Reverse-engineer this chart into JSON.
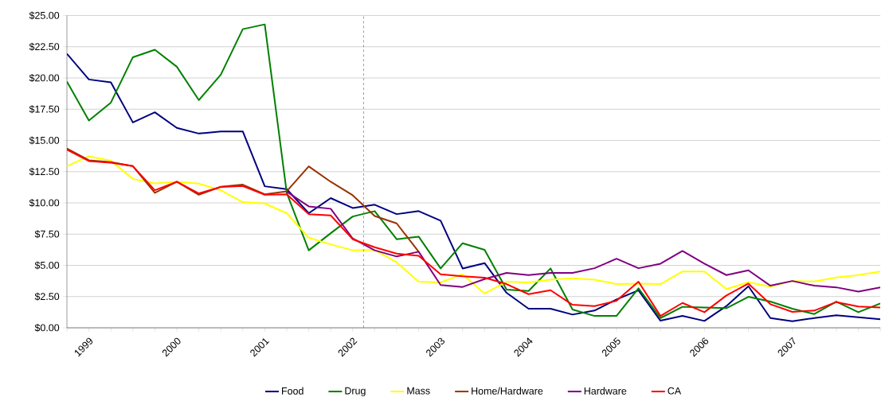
{
  "chart_data": {
    "type": "line",
    "x": [
      1998.75,
      1999.0,
      1999.25,
      1999.5,
      1999.75,
      2000.0,
      2000.25,
      2000.5,
      2000.75,
      2001.0,
      2001.25,
      2001.5,
      2001.75,
      2002.0,
      2002.25,
      2002.5,
      2002.75,
      2003.0,
      2003.25,
      2003.5,
      2003.75,
      2004.0,
      2004.25,
      2004.5,
      2004.75,
      2005.0,
      2005.25,
      2005.5,
      2005.75,
      2006.0,
      2006.25,
      2006.5,
      2006.75,
      2007.0,
      2007.25,
      2007.5,
      2007.75,
      2008.0
    ],
    "series": [
      {
        "name": "Food",
        "color": "#000080",
        "values": [
          21.94,
          19.88,
          19.65,
          16.44,
          17.25,
          16.0,
          15.55,
          15.72,
          15.72,
          11.33,
          11.1,
          9.17,
          10.38,
          9.59,
          9.85,
          9.1,
          9.34,
          8.57,
          4.75,
          5.18,
          2.8,
          1.53,
          1.53,
          1.06,
          1.38,
          2.27,
          3.0,
          0.57,
          0.95,
          0.55,
          1.74,
          3.33,
          0.78,
          0.53,
          0.78,
          1.01,
          0.85,
          0.68
        ]
      },
      {
        "name": "Drug",
        "color": "#008000",
        "values": [
          19.71,
          16.59,
          18.03,
          21.66,
          22.26,
          20.9,
          18.23,
          20.26,
          23.91,
          24.29,
          10.8,
          6.2,
          7.57,
          8.91,
          9.34,
          7.09,
          7.3,
          4.75,
          6.77,
          6.24,
          3.06,
          2.95,
          4.75,
          1.46,
          0.95,
          0.95,
          3.16,
          0.78,
          1.68,
          1.63,
          1.57,
          2.48,
          2.1,
          1.53,
          1.1,
          2.1,
          1.25,
          1.95
        ]
      },
      {
        "name": "Mass",
        "color": "#ffff00",
        "values": [
          12.94,
          13.73,
          13.37,
          11.92,
          11.56,
          11.69,
          11.54,
          11.01,
          10.06,
          9.95,
          9.17,
          7.21,
          6.68,
          6.2,
          6.24,
          5.24,
          3.69,
          3.63,
          4.29,
          2.74,
          3.69,
          3.63,
          3.86,
          3.96,
          3.86,
          3.5,
          3.54,
          3.5,
          4.51,
          4.51,
          3.11,
          3.65,
          3.29,
          3.75,
          3.71,
          4.03,
          4.22,
          4.5
        ]
      },
      {
        "name": "Home/Hardware",
        "color": "#993300",
        "values": [
          14.36,
          13.41,
          13.26,
          12.94,
          10.8,
          11.69,
          10.65,
          11.29,
          11.46,
          10.69,
          10.93,
          12.92,
          11.69,
          10.61,
          8.95,
          8.36,
          6.09,
          null,
          null,
          null,
          null,
          null,
          null,
          null,
          null,
          null,
          null,
          null,
          null,
          null,
          null,
          null,
          null,
          null,
          null,
          null,
          null,
          null
        ]
      },
      {
        "name": "Hardware",
        "color": "#800080",
        "values": [
          null,
          null,
          null,
          null,
          null,
          null,
          null,
          null,
          null,
          null,
          10.9,
          9.72,
          9.53,
          7.15,
          6.2,
          5.71,
          6.09,
          3.42,
          3.27,
          3.9,
          4.39,
          4.22,
          4.39,
          4.39,
          4.77,
          5.53,
          4.77,
          5.13,
          6.15,
          5.13,
          4.22,
          4.6,
          3.37,
          3.75,
          3.37,
          3.24,
          2.9,
          3.24
        ]
      },
      {
        "name": "CA",
        "color": "#ff0000",
        "values": [
          14.26,
          13.35,
          13.22,
          12.94,
          11.01,
          11.69,
          10.76,
          11.27,
          11.35,
          10.65,
          10.69,
          9.1,
          9.0,
          7.09,
          6.45,
          5.94,
          5.77,
          4.29,
          4.12,
          4.01,
          3.5,
          2.69,
          3.01,
          1.84,
          1.74,
          2.16,
          3.69,
          0.95,
          1.99,
          1.25,
          2.59,
          3.54,
          1.89,
          1.27,
          1.38,
          2.06,
          1.7,
          1.63
        ]
      }
    ],
    "xlim": [
      1998.75,
      2008.0
    ],
    "xticks": [
      {
        "value": 1998.75,
        "label": null
      },
      {
        "value": 1999,
        "label": "1999"
      },
      {
        "value": 1999.25,
        "label": null
      },
      {
        "value": 1999.5,
        "label": null
      },
      {
        "value": 1999.75,
        "label": null
      },
      {
        "value": 2000,
        "label": "2000"
      },
      {
        "value": 2000.25,
        "label": null
      },
      {
        "value": 2000.5,
        "label": null
      },
      {
        "value": 2000.75,
        "label": null
      },
      {
        "value": 2001,
        "label": "2001"
      },
      {
        "value": 2001.25,
        "label": null
      },
      {
        "value": 2001.5,
        "label": null
      },
      {
        "value": 2001.75,
        "label": null
      },
      {
        "value": 2002,
        "label": "2002"
      },
      {
        "value": 2002.25,
        "label": null
      },
      {
        "value": 2002.5,
        "label": null
      },
      {
        "value": 2002.75,
        "label": null
      },
      {
        "value": 2003,
        "label": "2003"
      },
      {
        "value": 2003.25,
        "label": null
      },
      {
        "value": 2003.5,
        "label": null
      },
      {
        "value": 2003.75,
        "label": null
      },
      {
        "value": 2004,
        "label": "2004"
      },
      {
        "value": 2004.25,
        "label": null
      },
      {
        "value": 2004.5,
        "label": null
      },
      {
        "value": 2004.75,
        "label": null
      },
      {
        "value": 2005,
        "label": "2005"
      },
      {
        "value": 2005.25,
        "label": null
      },
      {
        "value": 2005.5,
        "label": null
      },
      {
        "value": 2005.75,
        "label": null
      },
      {
        "value": 2006,
        "label": "2006"
      },
      {
        "value": 2006.25,
        "label": null
      },
      {
        "value": 2006.5,
        "label": null
      },
      {
        "value": 2006.75,
        "label": null
      },
      {
        "value": 2007,
        "label": "2007"
      },
      {
        "value": 2007.25,
        "label": null
      },
      {
        "value": 2007.5,
        "label": null
      },
      {
        "value": 2007.75,
        "label": null
      },
      {
        "value": 2008,
        "label": null
      }
    ],
    "ylim": [
      0,
      25
    ],
    "yticks": [
      {
        "value": 0,
        "label": "$0.00"
      },
      {
        "value": 2.5,
        "label": "$2.50"
      },
      {
        "value": 5,
        "label": "$5.00"
      },
      {
        "value": 7.5,
        "label": "$7.50"
      },
      {
        "value": 10,
        "label": "$10.00"
      },
      {
        "value": 12.5,
        "label": "$12.50"
      },
      {
        "value": 15,
        "label": "$15.00"
      },
      {
        "value": 17.5,
        "label": "$17.50"
      },
      {
        "value": 20,
        "label": "$20.00"
      },
      {
        "value": 22.5,
        "label": "$22.50"
      },
      {
        "value": 25,
        "label": "$25.00"
      }
    ],
    "ref_lines": [
      {
        "axis": "x",
        "value": 2002.125,
        "color": "#808080",
        "line_style": "dashed"
      }
    ],
    "grid": "y",
    "legend": "bottom",
    "marker": "none",
    "line_style": "solid"
  }
}
